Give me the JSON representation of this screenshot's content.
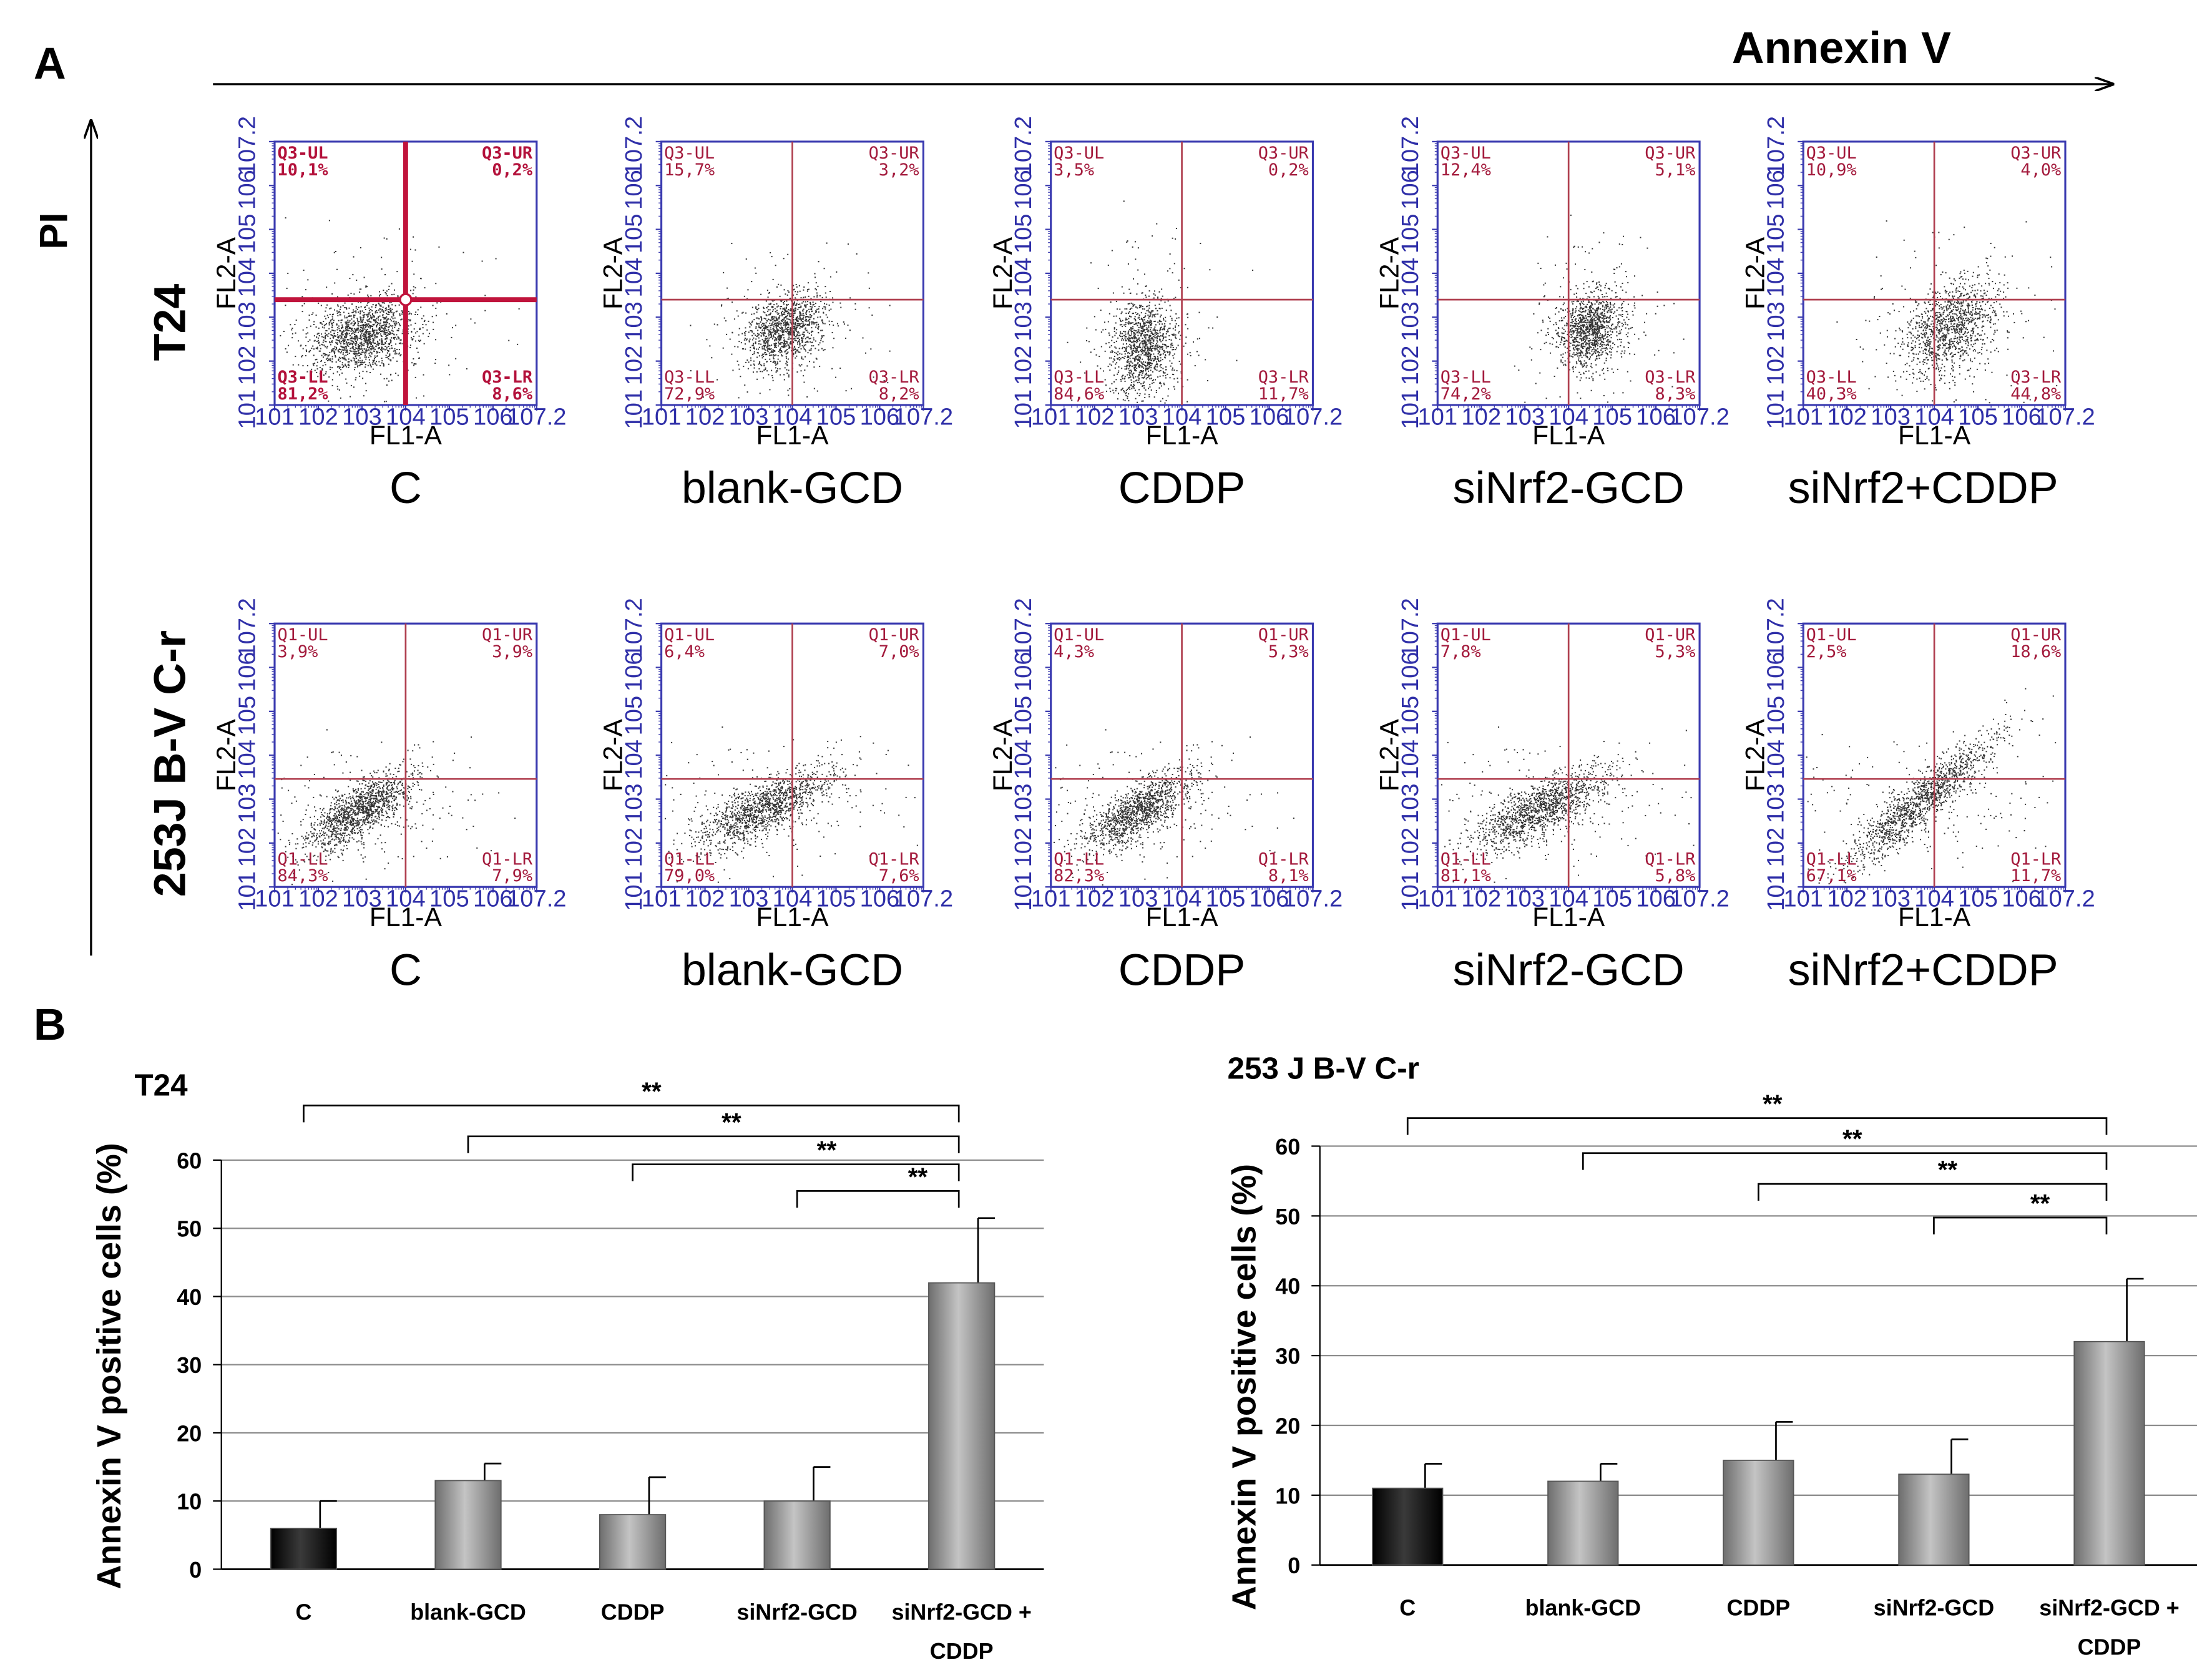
{
  "panel_a": {
    "label": "A",
    "x_axis_title": "Annexin V",
    "y_axis_title": "PI",
    "rows": [
      {
        "name": "T24",
        "plots": [
          {
            "group": "C",
            "prefix": "Q3",
            "ul": "10,1%",
            "ur": "0,2%",
            "ll": "81,2%",
            "lr": "8,6%",
            "emph": true
          },
          {
            "group": "blank-GCD",
            "prefix": "Q3",
            "ul": "15,7%",
            "ur": "3,2%",
            "ll": "72,9%",
            "lr": "8,2%",
            "emph": false
          },
          {
            "group": "CDDP",
            "prefix": "Q3",
            "ul": "3,5%",
            "ur": "0,2%",
            "ll": "84,6%",
            "lr": "11,7%",
            "emph": false
          },
          {
            "group": "siNrf2-GCD",
            "prefix": "Q3",
            "ul": "12,4%",
            "ur": "5,1%",
            "ll": "74,2%",
            "lr": "8,3%",
            "emph": false
          },
          {
            "group": "siNrf2+CDDP",
            "prefix": "Q3",
            "ul": "10,9%",
            "ur": "4,0%",
            "ll": "40,3%",
            "lr": "44,8%",
            "emph": false
          }
        ]
      },
      {
        "name": "253J B-V C-r",
        "plots": [
          {
            "group": "C",
            "prefix": "Q1",
            "ul": "3,9%",
            "ur": "3,9%",
            "ll": "84,3%",
            "lr": "7,9%",
            "emph": false
          },
          {
            "group": "blank-GCD",
            "prefix": "Q1",
            "ul": "6,4%",
            "ur": "7,0%",
            "ll": "79,0%",
            "lr": "7,6%",
            "emph": false
          },
          {
            "group": "CDDP",
            "prefix": "Q1",
            "ul": "4,3%",
            "ur": "5,3%",
            "ll": "82,3%",
            "lr": "8,1%",
            "emph": false
          },
          {
            "group": "siNrf2-GCD",
            "prefix": "Q1",
            "ul": "7,8%",
            "ur": "5,3%",
            "ll": "81,1%",
            "lr": "5,8%",
            "emph": false
          },
          {
            "group": "siNrf2+CDDP",
            "prefix": "Q1",
            "ul": "2,5%",
            "ur": "18,6%",
            "ll": "67,1%",
            "lr": "11,7%",
            "emph": false
          }
        ]
      }
    ],
    "plot_axis": {
      "x_name": "FL1-A",
      "y_name": "FL2-A",
      "ticks": [
        "10^1",
        "10^2",
        "10^3",
        "10^4",
        "10^5",
        "10^6",
        "10^7.2"
      ]
    }
  },
  "panel_b": {
    "label": "B",
    "significance_mark": "**"
  },
  "chart_data": [
    {
      "type": "bar",
      "title": "T24",
      "categories": [
        "C",
        "blank-GCD",
        "CDDP",
        "siNrf2-GCD",
        "siNrf2-GCD + CDDP"
      ],
      "category_lines": [
        [
          "C"
        ],
        [
          "blank-GCD"
        ],
        [
          "CDDP"
        ],
        [
          "siNrf2-GCD"
        ],
        [
          "siNrf2-GCD +",
          "CDDP"
        ]
      ],
      "values": [
        6,
        13,
        8,
        10,
        42
      ],
      "errors": [
        4,
        2.5,
        5.5,
        5,
        9.5
      ],
      "bar_colors": [
        "#111111",
        "#8a8a8a",
        "#8a8a8a",
        "#8a8a8a",
        "#8a8a8a"
      ],
      "ylabel": "Annexin V positive cells (%)",
      "xlabel": "",
      "ylim": [
        0,
        60
      ],
      "yticks": [
        0,
        10,
        20,
        30,
        40,
        50,
        60
      ],
      "grid": true,
      "comparisons": [
        {
          "from": 0,
          "to": 4,
          "label": "**"
        },
        {
          "from": 1,
          "to": 4,
          "label": "**"
        },
        {
          "from": 2,
          "to": 4,
          "label": "**"
        },
        {
          "from": 3,
          "to": 4,
          "label": "**"
        }
      ]
    },
    {
      "type": "bar",
      "title": "253 J B-V C-r",
      "categories": [
        "C",
        "blank-GCD",
        "CDDP",
        "siNrf2-GCD",
        "siNrf2-GCD + CDDP"
      ],
      "category_lines": [
        [
          "C"
        ],
        [
          "blank-GCD"
        ],
        [
          "CDDP"
        ],
        [
          "siNrf2-GCD"
        ],
        [
          "siNrf2-GCD +",
          "CDDP"
        ]
      ],
      "values": [
        11,
        12,
        15,
        13,
        32
      ],
      "errors": [
        3.5,
        2.5,
        5.5,
        5,
        9
      ],
      "bar_colors": [
        "#111111",
        "#8a8a8a",
        "#8a8a8a",
        "#8a8a8a",
        "#8a8a8a"
      ],
      "ylabel": "Annexin V positive cells (%)",
      "xlabel": "",
      "ylim": [
        0,
        60
      ],
      "yticks": [
        0,
        10,
        20,
        30,
        40,
        50,
        60
      ],
      "grid": true,
      "comparisons": [
        {
          "from": 0,
          "to": 4,
          "label": "**"
        },
        {
          "from": 1,
          "to": 4,
          "label": "**"
        },
        {
          "from": 2,
          "to": 4,
          "label": "**"
        },
        {
          "from": 3,
          "to": 4,
          "label": "**"
        }
      ]
    }
  ]
}
